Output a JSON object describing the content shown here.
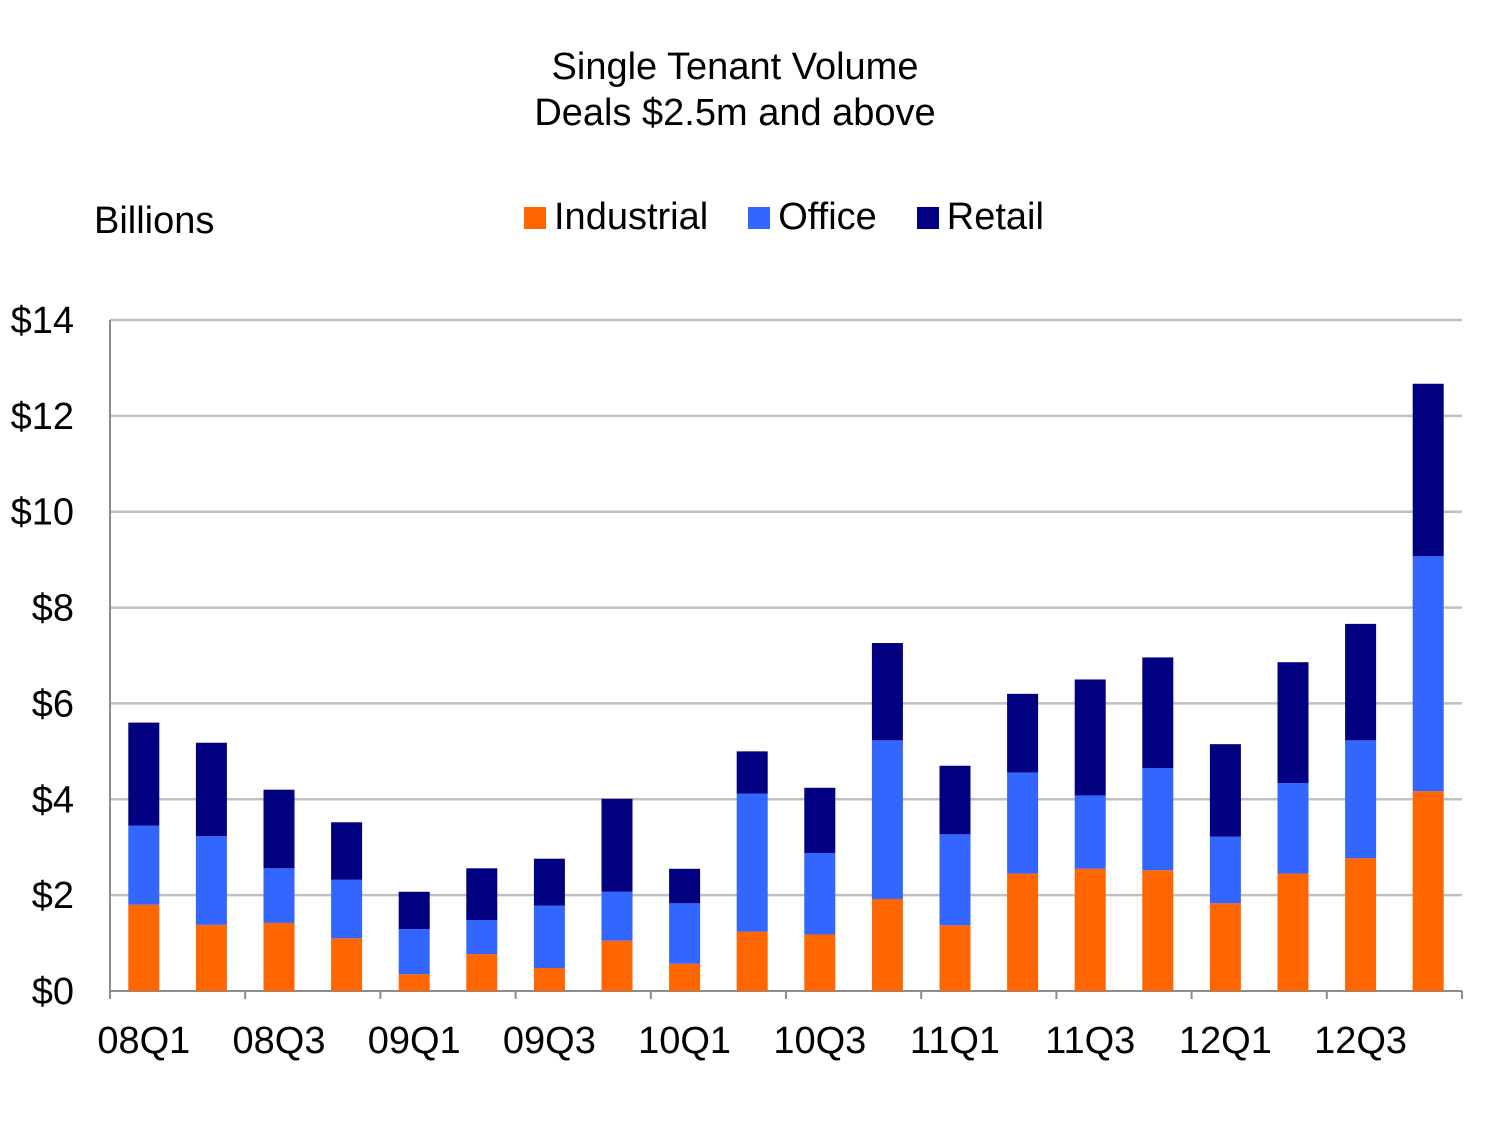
{
  "chart_data": {
    "type": "bar",
    "stacked": true,
    "title": "Single Tenant Volume",
    "subtitle": "Deals $2.5m and above",
    "ylabel": "Billions",
    "xlabel": "",
    "ylim": [
      0,
      14
    ],
    "yticks": [
      "$0",
      "$2",
      "$4",
      "$6",
      "$8",
      "$10",
      "$12",
      "$14"
    ],
    "ytick_values": [
      0,
      2,
      4,
      6,
      8,
      10,
      12,
      14
    ],
    "x_tick_labels": [
      "08Q1",
      "08Q3",
      "09Q1",
      "09Q3",
      "10Q1",
      "10Q3",
      "11Q1",
      "11Q3",
      "12Q1",
      "12Q3"
    ],
    "categories": [
      "08Q1",
      "08Q2",
      "08Q3",
      "08Q4",
      "09Q1",
      "09Q2",
      "09Q3",
      "09Q4",
      "10Q1",
      "10Q2",
      "10Q3",
      "10Q4",
      "11Q1",
      "11Q2",
      "11Q3",
      "11Q4",
      "12Q1",
      "12Q2",
      "12Q3",
      "12Q4"
    ],
    "grid": true,
    "legend_position": "top",
    "series": [
      {
        "name": "Industrial",
        "color": "#FF6600",
        "values": [
          1.8,
          1.38,
          1.42,
          1.1,
          0.35,
          0.77,
          0.48,
          1.05,
          0.57,
          1.24,
          1.18,
          1.92,
          1.37,
          2.45,
          2.55,
          2.52,
          1.83,
          2.45,
          2.77,
          4.17
        ]
      },
      {
        "name": "Office",
        "color": "#3366FF",
        "values": [
          1.65,
          1.85,
          1.14,
          1.22,
          0.94,
          0.71,
          1.3,
          1.02,
          1.26,
          2.88,
          1.7,
          3.31,
          1.9,
          2.11,
          1.53,
          2.13,
          1.39,
          1.89,
          2.46,
          4.9
        ]
      },
      {
        "name": "Retail",
        "color": "#000080",
        "values": [
          2.15,
          1.95,
          1.64,
          1.2,
          0.78,
          1.08,
          0.98,
          1.94,
          0.72,
          0.88,
          1.36,
          2.03,
          1.43,
          1.64,
          2.42,
          2.31,
          1.93,
          2.52,
          2.43,
          3.6
        ]
      }
    ]
  }
}
